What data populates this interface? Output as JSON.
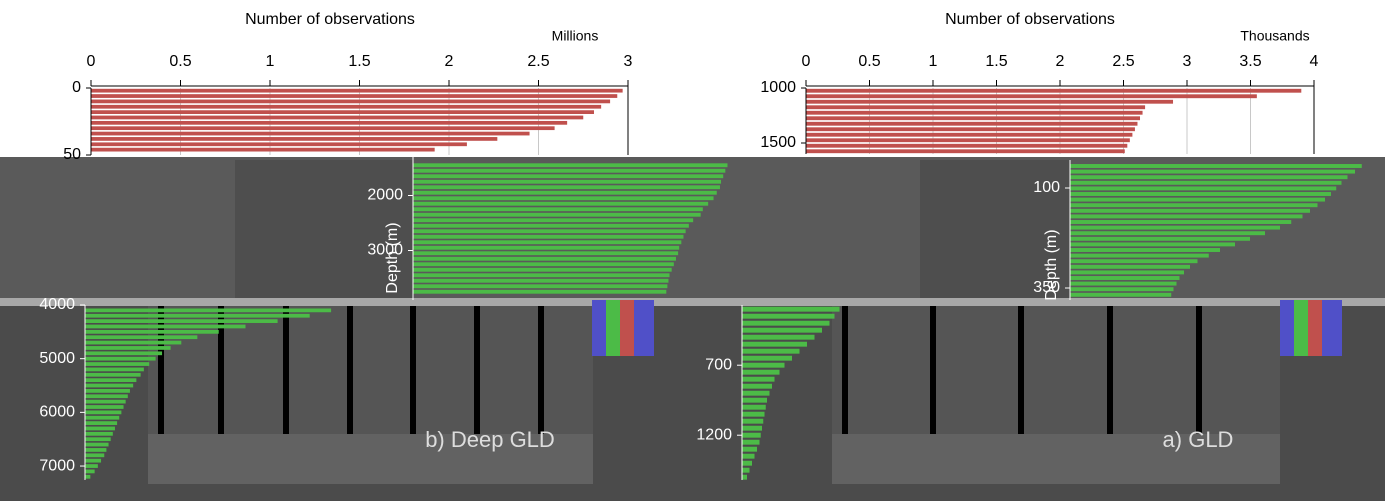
{
  "chart_data": [
    {
      "type": "hbar",
      "x_label": "Number of observations",
      "x_unit": "Millions",
      "color": "#c0504d",
      "grid": true,
      "xlim": [
        0,
        3
      ],
      "xticks": [
        0,
        0.5,
        1,
        1.5,
        2,
        2.5,
        3
      ],
      "ylim": [
        0,
        50
      ],
      "yticks": [
        0,
        50
      ],
      "y": [
        2,
        6,
        10,
        14,
        18,
        22,
        26,
        30,
        34,
        38,
        42,
        46
      ],
      "values": [
        2.97,
        2.94,
        2.9,
        2.85,
        2.81,
        2.75,
        2.66,
        2.59,
        2.45,
        2.27,
        2.1,
        1.92
      ]
    },
    {
      "type": "hbar",
      "x_label": "Number of observations",
      "x_unit": "Thousands",
      "color": "#c0504d",
      "grid": true,
      "xlim": [
        0,
        4
      ],
      "xticks": [
        0,
        0.5,
        1,
        1.5,
        2,
        2.5,
        3,
        3.5,
        4
      ],
      "ylim": [
        1000,
        1600
      ],
      "yticks": [
        1000,
        1500
      ],
      "y": [
        1025,
        1075,
        1125,
        1175,
        1225,
        1275,
        1325,
        1375,
        1425,
        1475,
        1525,
        1575
      ],
      "values": [
        3.9,
        3.55,
        2.89,
        2.67,
        2.65,
        2.63,
        2.61,
        2.59,
        2.57,
        2.55,
        2.53,
        2.51
      ]
    },
    {
      "type": "hbar",
      "y_label": "Depth (m)",
      "color": "#4cbb47",
      "grid": false,
      "xlim": [
        0,
        3
      ],
      "ylim": [
        1300,
        3900
      ],
      "yticks": [
        2000,
        3000
      ],
      "y": [
        1450,
        1550,
        1650,
        1750,
        1850,
        1950,
        2050,
        2150,
        2250,
        2350,
        2450,
        2550,
        2650,
        2750,
        2850,
        2950,
        3050,
        3150,
        3250,
        3350,
        3450,
        3550,
        3650,
        3750
      ],
      "values": [
        2.93,
        2.91,
        2.89,
        2.87,
        2.86,
        2.83,
        2.8,
        2.75,
        2.7,
        2.68,
        2.61,
        2.57,
        2.54,
        2.52,
        2.5,
        2.48,
        2.47,
        2.45,
        2.43,
        2.41,
        2.39,
        2.38,
        2.37,
        2.36
      ]
    },
    {
      "type": "hbar",
      "annotation": "b) Deep GLD",
      "color": "#4cbb47",
      "grid": false,
      "xlim": [
        0,
        3
      ],
      "ylim": [
        4000,
        7260
      ],
      "yticks": [
        4000,
        5000,
        6000,
        7000
      ],
      "y": [
        4100,
        4200,
        4300,
        4400,
        4500,
        4600,
        4700,
        4800,
        4900,
        5000,
        5100,
        5200,
        5300,
        5400,
        5500,
        5600,
        5700,
        5800,
        5900,
        6000,
        6100,
        6200,
        6300,
        6400,
        6500,
        6600,
        6700,
        6800,
        6900,
        7000,
        7100,
        7200
      ],
      "values": [
        2.3,
        2.1,
        1.8,
        1.5,
        1.25,
        1.05,
        0.9,
        0.8,
        0.72,
        0.66,
        0.6,
        0.55,
        0.52,
        0.48,
        0.45,
        0.42,
        0.4,
        0.38,
        0.36,
        0.34,
        0.32,
        0.3,
        0.28,
        0.26,
        0.24,
        0.22,
        0.2,
        0.18,
        0.15,
        0.12,
        0.09,
        0.05
      ]
    },
    {
      "type": "hbar",
      "y_label": "Depth (m)",
      "color": "#4cbb47",
      "grid": false,
      "xlim": [
        0,
        4
      ],
      "ylim": [
        30,
        380
      ],
      "yticks": [
        100,
        350
      ],
      "y": [
        45,
        59,
        73,
        87,
        101,
        115,
        129,
        143,
        157,
        171,
        185,
        199,
        213,
        227,
        241,
        255,
        269,
        283,
        297,
        311,
        325,
        339,
        353,
        367
      ],
      "values": [
        3.89,
        3.8,
        3.7,
        3.62,
        3.55,
        3.48,
        3.4,
        3.3,
        3.2,
        3.1,
        2.95,
        2.8,
        2.6,
        2.4,
        2.2,
        2.0,
        1.85,
        1.7,
        1.6,
        1.52,
        1.46,
        1.42,
        1.38,
        1.35
      ]
    },
    {
      "type": "hbar",
      "annotation": "a) GLD",
      "color": "#4cbb47",
      "grid": false,
      "xlim": [
        0,
        4
      ],
      "ylim": [
        270,
        1520
      ],
      "yticks": [
        700,
        1200
      ],
      "y": [
        300,
        350,
        400,
        450,
        500,
        550,
        600,
        650,
        700,
        750,
        800,
        850,
        900,
        950,
        1000,
        1050,
        1100,
        1150,
        1200,
        1250,
        1300,
        1350,
        1400,
        1450,
        1500
      ],
      "values": [
        3.9,
        3.7,
        3.5,
        3.2,
        2.9,
        2.6,
        2.3,
        2.0,
        1.7,
        1.5,
        1.3,
        1.2,
        1.1,
        1.0,
        0.95,
        0.9,
        0.85,
        0.8,
        0.75,
        0.7,
        0.6,
        0.5,
        0.4,
        0.3,
        0.2
      ]
    }
  ]
}
